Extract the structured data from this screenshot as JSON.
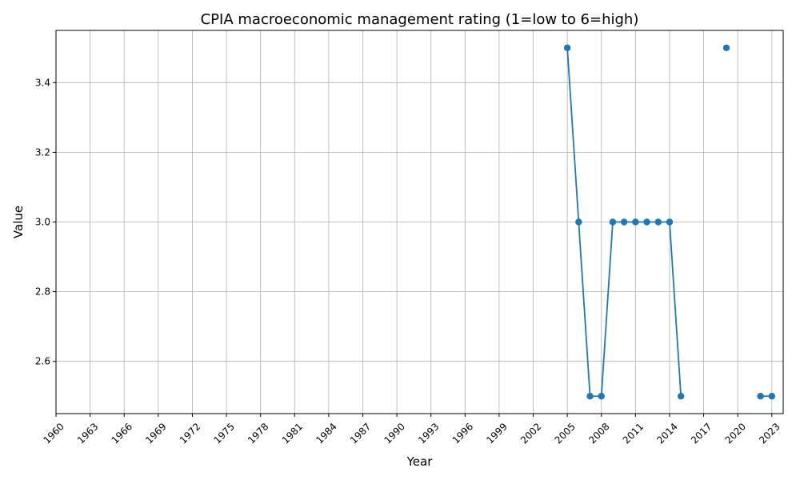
{
  "chart_data": {
    "type": "line",
    "title": "CPIA macroeconomic management rating (1=low to 6=high)",
    "xlabel": "Year",
    "ylabel": "Value",
    "xlim": [
      1960,
      2024
    ],
    "ylim": [
      2.45,
      3.55
    ],
    "x_ticks": [
      1960,
      1963,
      1966,
      1969,
      1972,
      1975,
      1978,
      1981,
      1984,
      1987,
      1990,
      1993,
      1996,
      1999,
      2002,
      2005,
      2008,
      2011,
      2014,
      2017,
      2020,
      2023
    ],
    "y_ticks": [
      2.6,
      2.8,
      3.0,
      3.2,
      3.4
    ],
    "y_tick_labels": [
      "2.6",
      "2.8",
      "3.0",
      "3.2",
      "3.4"
    ],
    "grid": true,
    "legend": "none",
    "color": "#1f77b4",
    "series": [
      {
        "x": [
          2005,
          2006,
          2007,
          2008,
          2009,
          2010,
          2011,
          2012,
          2013,
          2014,
          2015,
          2016,
          2017,
          2018,
          2019,
          2020,
          2021,
          2022,
          2023
        ],
        "values": [
          3.5,
          3.0,
          2.5,
          2.5,
          3.0,
          3.0,
          3.0,
          3.0,
          3.0,
          3.0,
          2.5,
          null,
          null,
          null,
          3.5,
          null,
          null,
          2.5,
          2.5
        ]
      }
    ]
  }
}
